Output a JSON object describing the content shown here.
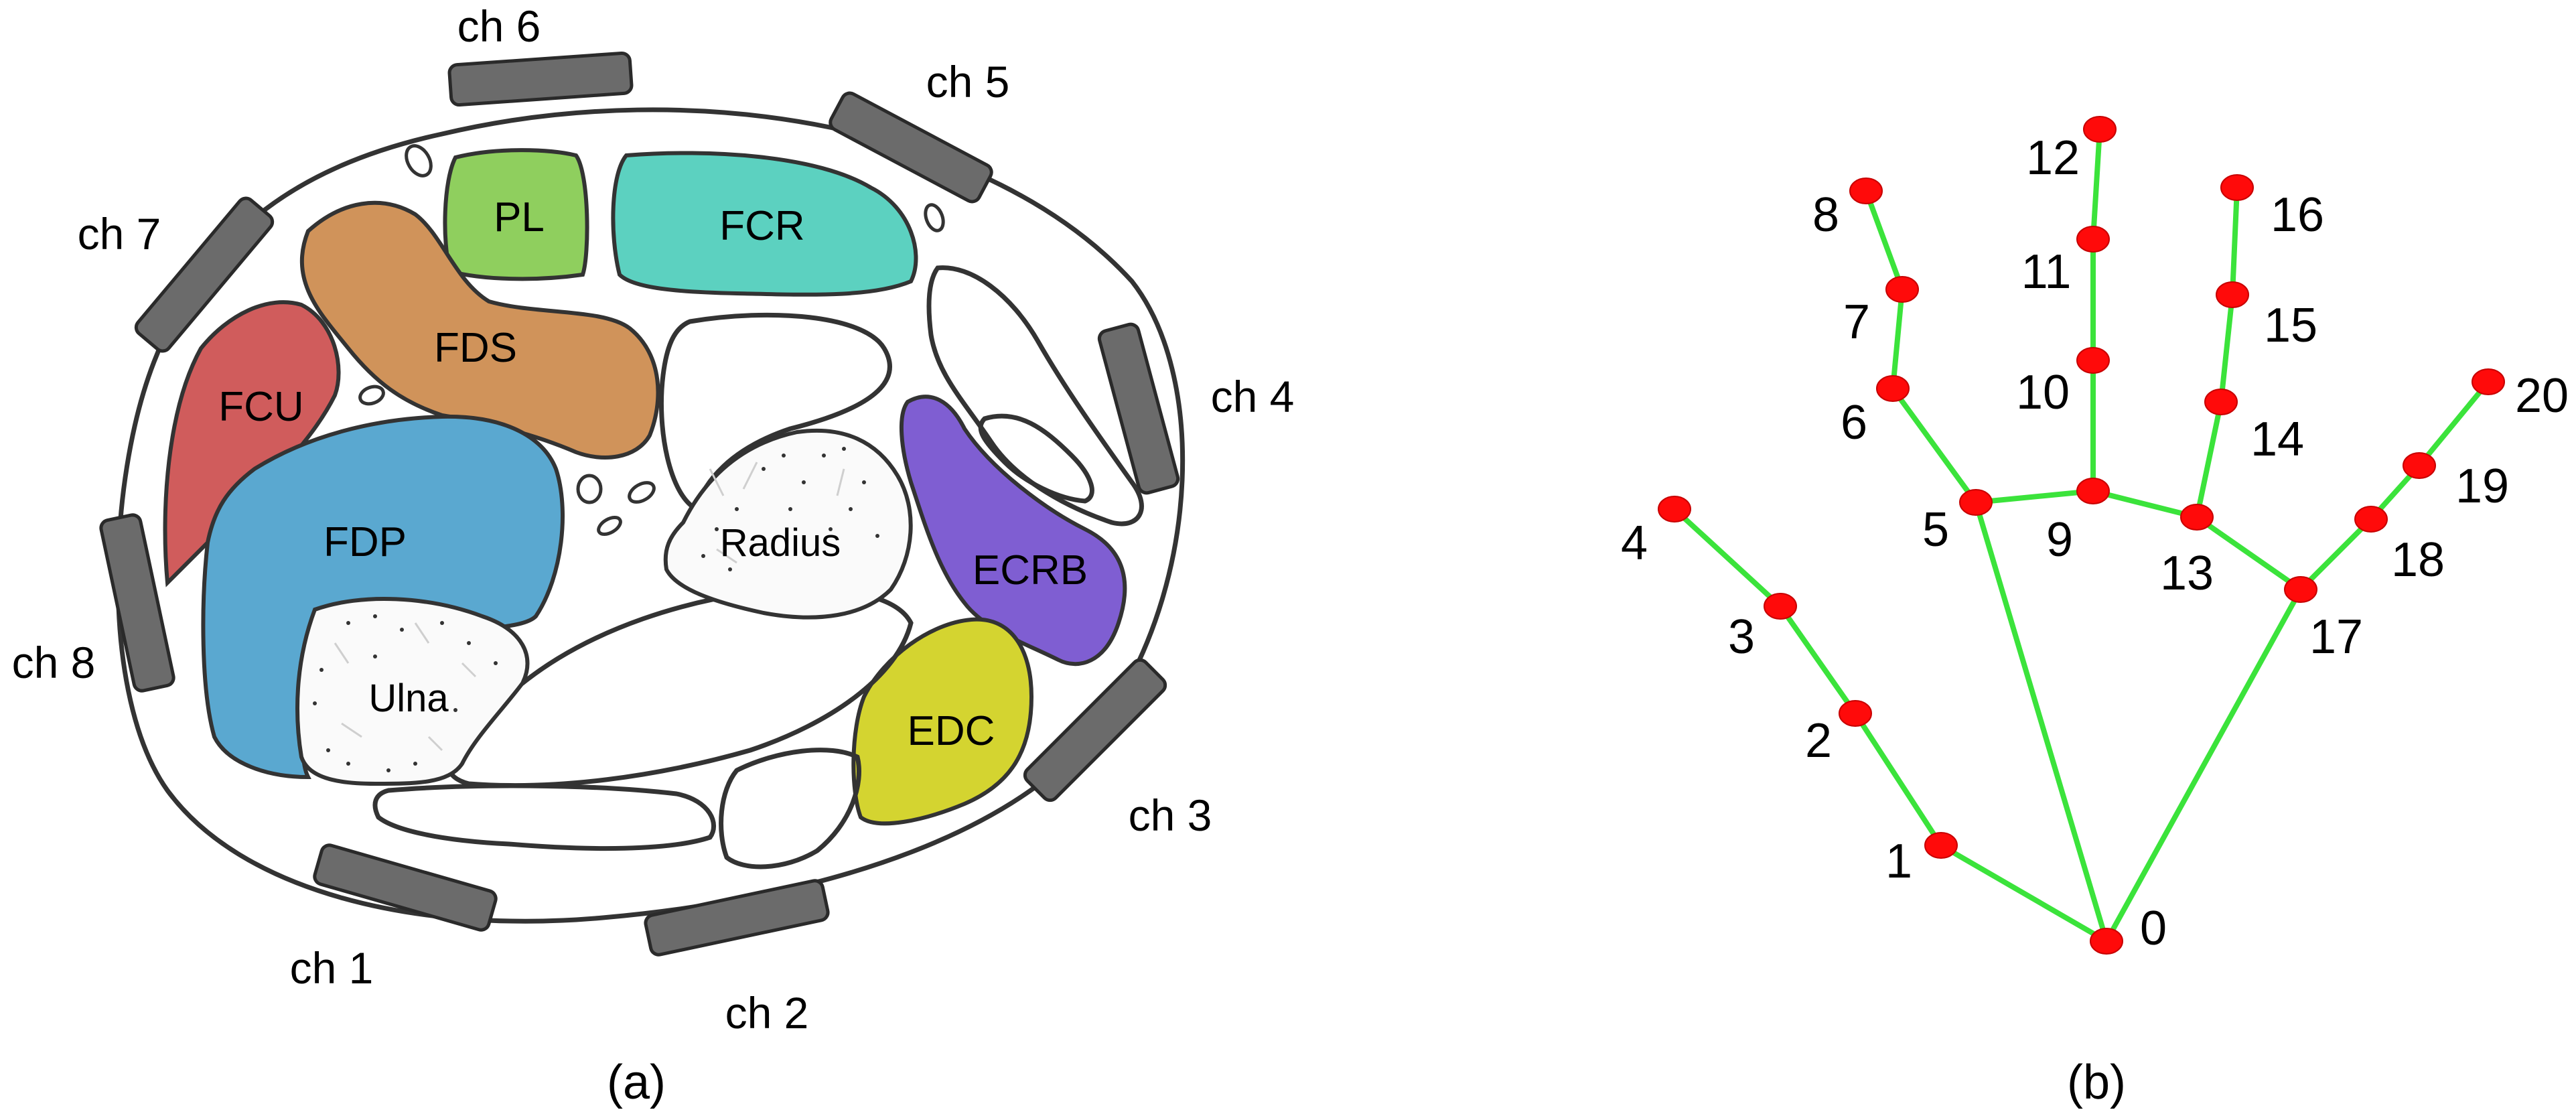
{
  "panel_a": {
    "caption": "(a)",
    "channels": [
      "ch 1",
      "ch 2",
      "ch 3",
      "ch 4",
      "ch 5",
      "ch 6",
      "ch 7",
      "ch 8"
    ],
    "muscles": [
      {
        "name": "PL",
        "color": "#8fcf5e"
      },
      {
        "name": "FCR",
        "color": "#5cd1c0"
      },
      {
        "name": "FDS",
        "color": "#d0935a"
      },
      {
        "name": "FCU",
        "color": "#d05c5c"
      },
      {
        "name": "FDP",
        "color": "#5aa8d0"
      },
      {
        "name": "ECRB",
        "color": "#7f5ed2"
      },
      {
        "name": "EDC",
        "color": "#d4d430"
      }
    ],
    "bones": [
      "Radius",
      "Ulna"
    ]
  },
  "panel_b": {
    "caption": "(b)",
    "keypoints": [
      "0",
      "1",
      "2",
      "3",
      "4",
      "5",
      "6",
      "7",
      "8",
      "9",
      "10",
      "11",
      "12",
      "13",
      "14",
      "15",
      "16",
      "17",
      "18",
      "19",
      "20"
    ],
    "connections": [
      [
        0,
        1
      ],
      [
        1,
        2
      ],
      [
        2,
        3
      ],
      [
        3,
        4
      ],
      [
        0,
        5
      ],
      [
        5,
        6
      ],
      [
        6,
        7
      ],
      [
        7,
        8
      ],
      [
        5,
        9
      ],
      [
        9,
        10
      ],
      [
        10,
        11
      ],
      [
        11,
        12
      ],
      [
        9,
        13
      ],
      [
        13,
        14
      ],
      [
        14,
        15
      ],
      [
        15,
        16
      ],
      [
        13,
        17
      ],
      [
        0,
        17
      ],
      [
        17,
        18
      ],
      [
        18,
        19
      ],
      [
        19,
        20
      ]
    ],
    "edge_color": "#3be33b",
    "point_color": "#ff0a0a"
  }
}
